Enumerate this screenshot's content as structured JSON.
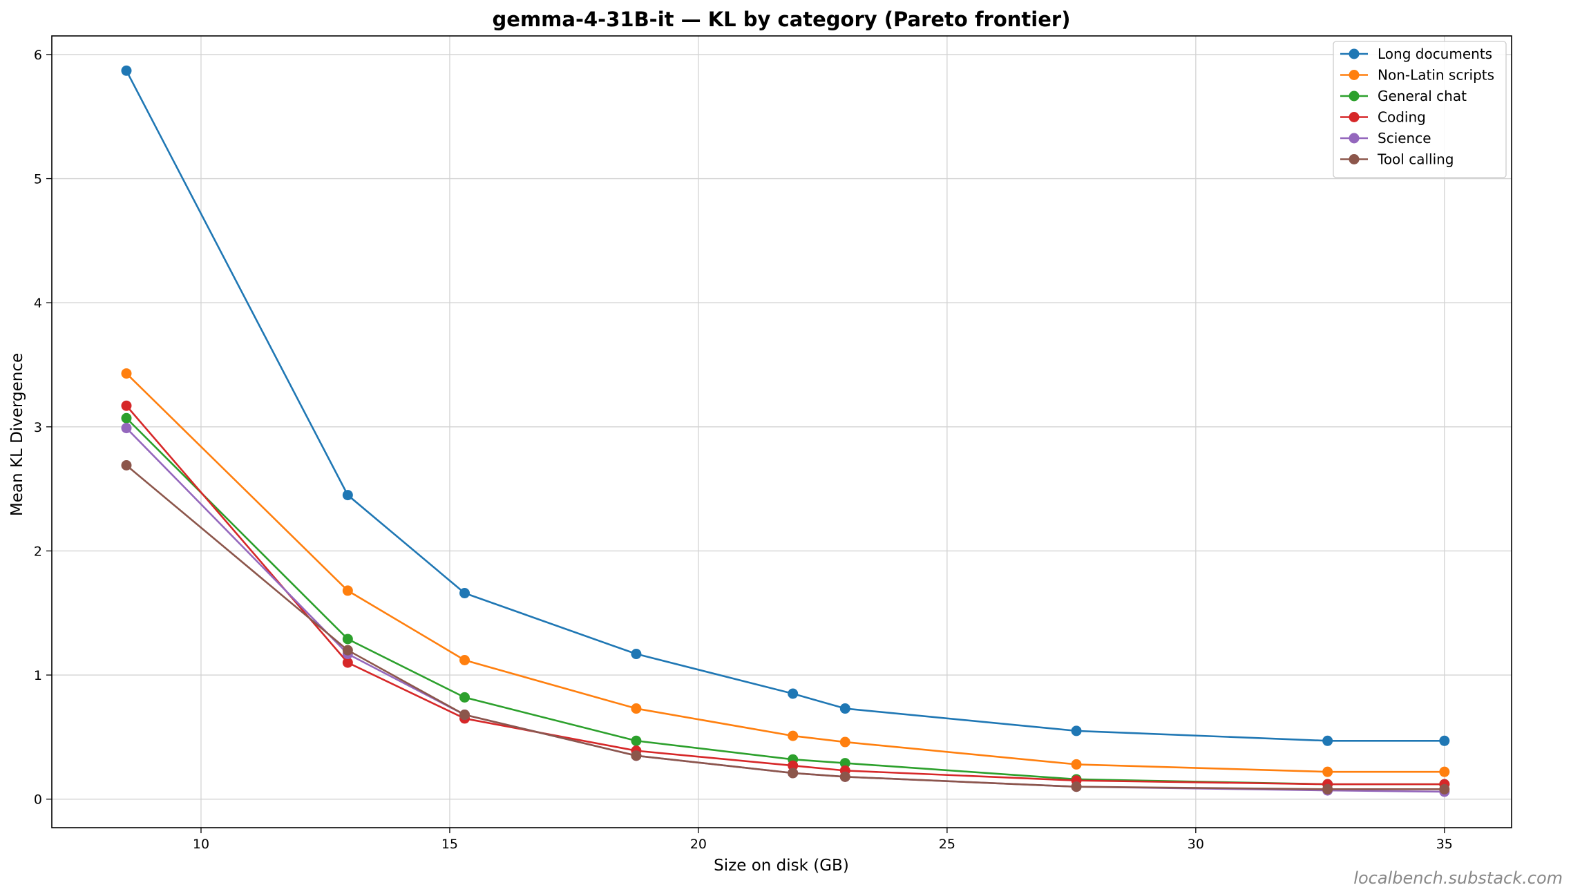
{
  "watermark": "localbench.substack.com",
  "chart_data": {
    "type": "line",
    "title": "gemma-4-31B-it — KL by category (Pareto frontier)",
    "xlabel": "Size on disk (GB)",
    "ylabel": "Mean KL Divergence",
    "xlim": [
      7.0,
      36.35
    ],
    "ylim": [
      -0.23,
      6.15
    ],
    "xticks": [
      10,
      15,
      20,
      25,
      30,
      35
    ],
    "yticks": [
      0,
      1,
      2,
      3,
      4,
      5,
      6
    ],
    "grid": true,
    "legend_position": "top-right",
    "x": [
      8.5,
      12.95,
      15.3,
      18.75,
      21.9,
      22.95,
      27.6,
      32.65,
      35.0
    ],
    "series": [
      {
        "name": "Long documents",
        "color": "#1f77b4",
        "values": [
          5.87,
          2.45,
          1.66,
          1.17,
          0.85,
          0.73,
          0.55,
          0.47,
          0.47
        ]
      },
      {
        "name": "Non-Latin scripts",
        "color": "#ff7f0e",
        "values": [
          3.43,
          1.68,
          1.12,
          0.73,
          0.51,
          0.46,
          0.28,
          0.22,
          0.22
        ]
      },
      {
        "name": "General chat",
        "color": "#2ca02c",
        "values": [
          3.07,
          1.29,
          0.82,
          0.47,
          0.32,
          0.29,
          0.16,
          0.12,
          0.12
        ]
      },
      {
        "name": "Coding",
        "color": "#d62728",
        "values": [
          3.17,
          1.1,
          0.65,
          0.39,
          0.27,
          0.23,
          0.15,
          0.12,
          0.12
        ]
      },
      {
        "name": "Science",
        "color": "#9467bd",
        "values": [
          2.99,
          1.17,
          0.68,
          0.35,
          0.21,
          0.18,
          0.1,
          0.07,
          0.06
        ]
      },
      {
        "name": "Tool calling",
        "color": "#8c564b",
        "values": [
          2.69,
          1.2,
          0.68,
          0.35,
          0.21,
          0.18,
          0.1,
          0.08,
          0.08
        ]
      }
    ]
  }
}
